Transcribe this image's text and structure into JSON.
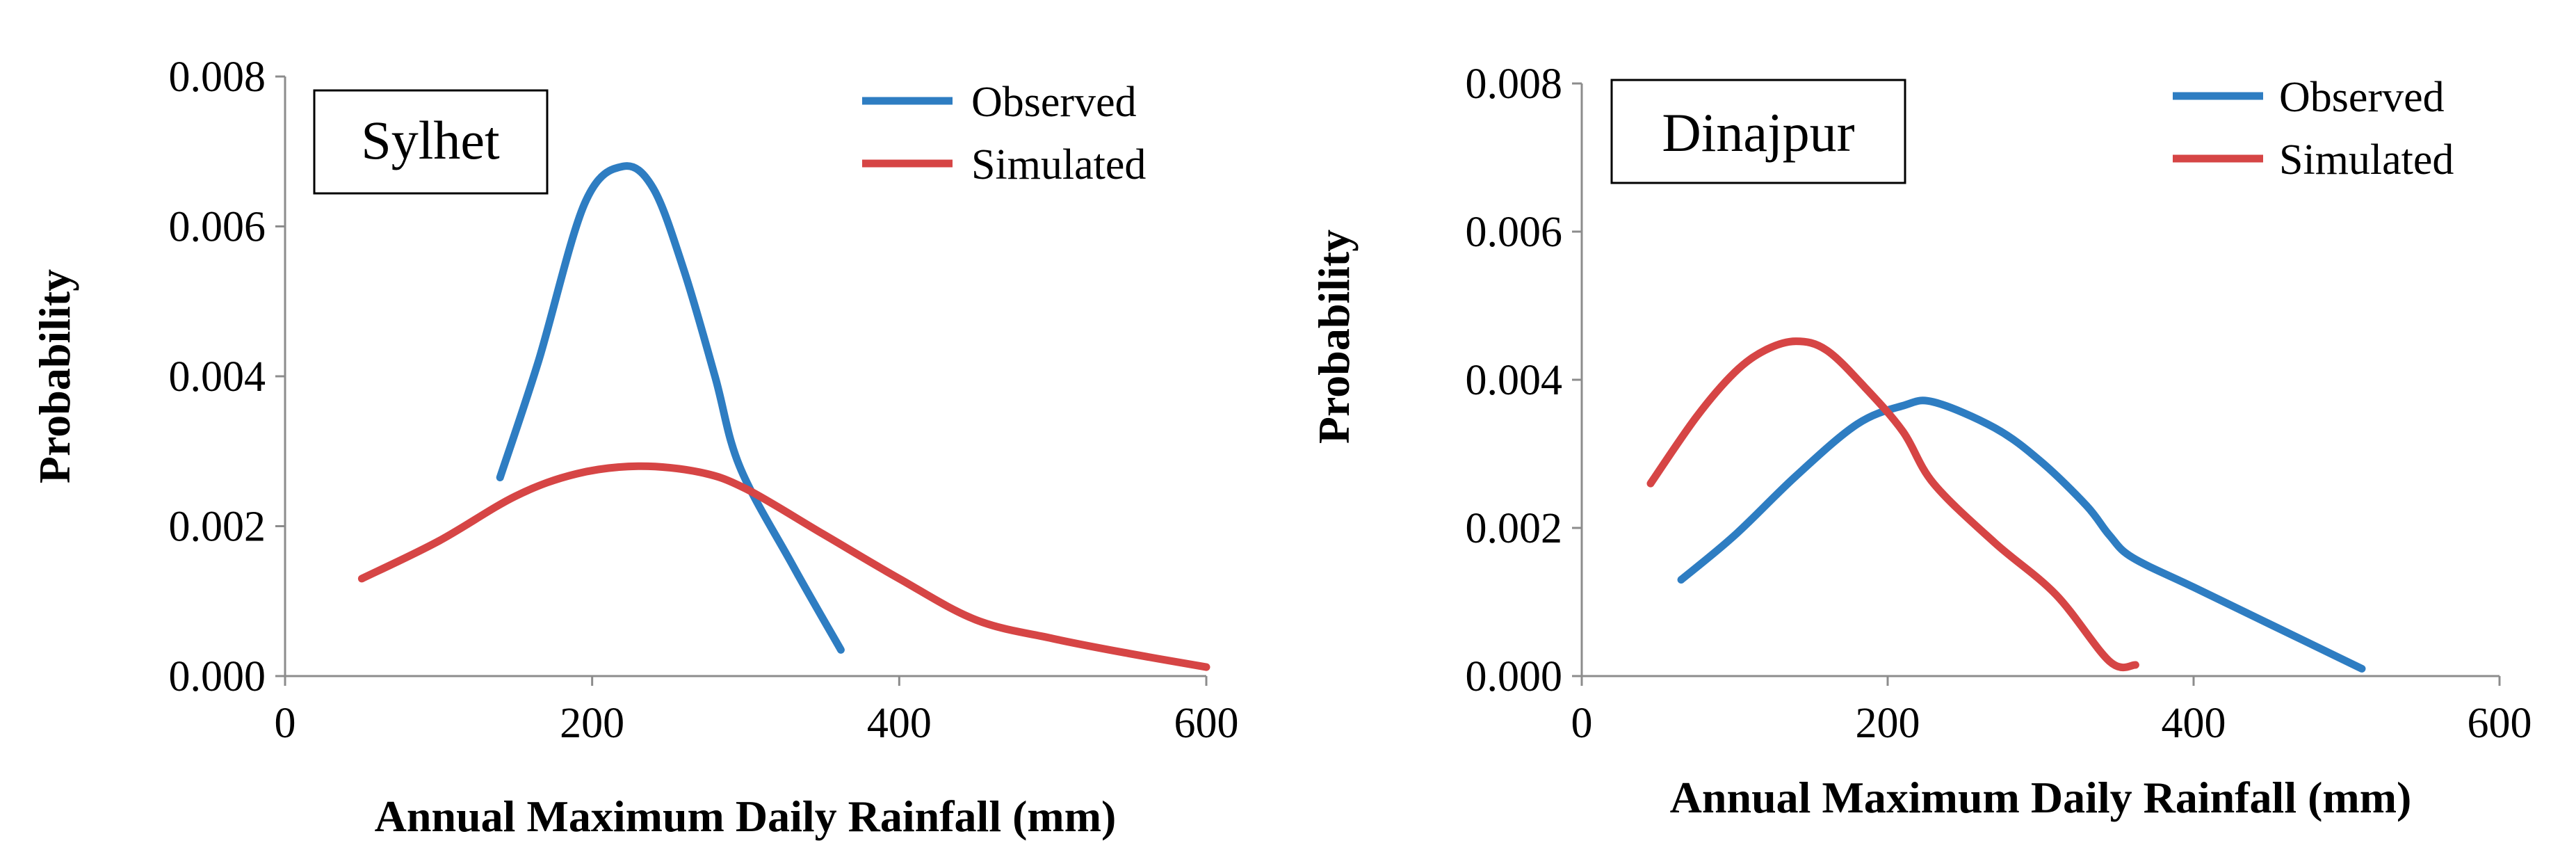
{
  "chart_data": [
    {
      "type": "line",
      "site": "Sylhet",
      "xlabel": "Annual Maximum Daily Rainfall (mm)",
      "ylabel": "Probability",
      "xlim": [
        0,
        600
      ],
      "ylim": [
        0,
        0.008
      ],
      "xticks": [
        0,
        200,
        400,
        600
      ],
      "yticks": [
        "0.000",
        "0.002",
        "0.004",
        "0.006",
        "0.008"
      ],
      "legend_position": "top-right",
      "series": [
        {
          "name": "Observed",
          "color": "#2E7DC2",
          "points": [
            [
              140,
              0.00265
            ],
            [
              165,
              0.0042
            ],
            [
              195,
              0.0063
            ],
            [
              220,
              0.0068
            ],
            [
              240,
              0.0065
            ],
            [
              260,
              0.0054
            ],
            [
              280,
              0.004
            ],
            [
              296,
              0.0028
            ],
            [
              330,
              0.0015
            ],
            [
              362,
              0.00035
            ]
          ]
        },
        {
          "name": "Simulated",
          "color": "#D64545",
          "points": [
            [
              50,
              0.0013
            ],
            [
              100,
              0.0018
            ],
            [
              150,
              0.0024
            ],
            [
              190,
              0.0027
            ],
            [
              230,
              0.0028
            ],
            [
              270,
              0.00272
            ],
            [
              300,
              0.0025
            ],
            [
              350,
              0.0019
            ],
            [
              400,
              0.0013
            ],
            [
              450,
              0.00075
            ],
            [
              500,
              0.0005
            ],
            [
              550,
              0.0003
            ],
            [
              600,
              0.00012
            ]
          ]
        }
      ]
    },
    {
      "type": "line",
      "site": "Dinajpur",
      "xlabel": "Annual Maximum Daily Rainfall (mm)",
      "ylabel": "Probability",
      "xlim": [
        0,
        600
      ],
      "ylim": [
        0,
        0.008
      ],
      "xticks": [
        0,
        200,
        400,
        600
      ],
      "yticks": [
        "0.000",
        "0.002",
        "0.004",
        "0.006",
        "0.008"
      ],
      "legend_position": "top-right",
      "series": [
        {
          "name": "Observed",
          "color": "#2E7DC2",
          "points": [
            [
              65,
              0.0013
            ],
            [
              100,
              0.0019
            ],
            [
              140,
              0.0027
            ],
            [
              180,
              0.0034
            ],
            [
              210,
              0.00365
            ],
            [
              230,
              0.0037
            ],
            [
              270,
              0.00335
            ],
            [
              300,
              0.0029
            ],
            [
              330,
              0.0023
            ],
            [
              345,
              0.0019
            ],
            [
              360,
              0.0016
            ],
            [
              400,
              0.0012
            ],
            [
              450,
              0.0007
            ],
            [
              510,
              0.0001
            ]
          ]
        },
        {
          "name": "Simulated",
          "color": "#D64545",
          "points": [
            [
              45,
              0.0026
            ],
            [
              75,
              0.0035
            ],
            [
              100,
              0.0041
            ],
            [
              120,
              0.0044
            ],
            [
              140,
              0.00452
            ],
            [
              160,
              0.0044
            ],
            [
              185,
              0.0039
            ],
            [
              210,
              0.0033
            ],
            [
              230,
              0.0026
            ],
            [
              270,
              0.0018
            ],
            [
              310,
              0.0011
            ],
            [
              345,
              0.0002
            ],
            [
              362,
              0.00015
            ]
          ]
        }
      ]
    }
  ]
}
